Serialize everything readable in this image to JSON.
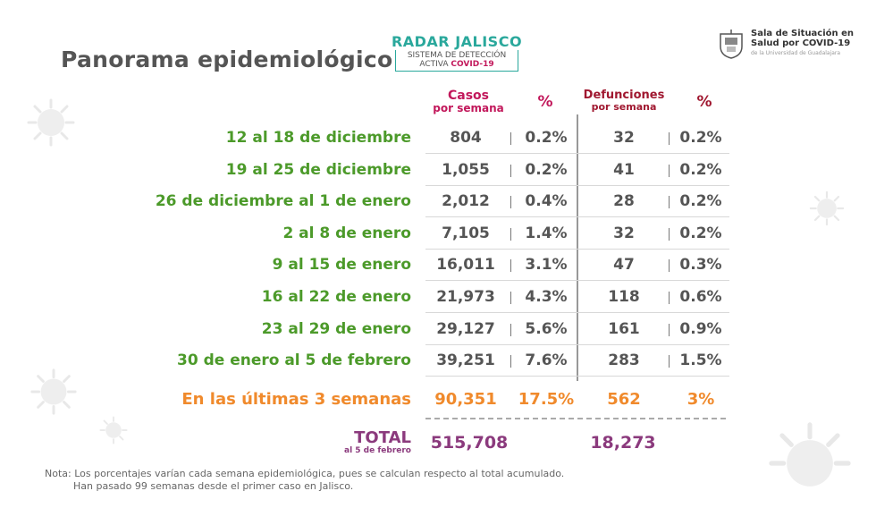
{
  "title": "Panorama epidemiológico",
  "radar": {
    "name": "RADAR JALISCO",
    "line1": "SISTEMA DE DETECCIÓN",
    "line2_prefix": "ACTIVA ",
    "line2_highlight": "COVID-19"
  },
  "brand": {
    "line1": "Sala de Situación en",
    "line2": "Salud por COVID-19",
    "line3": "de la Universidad de Guadalajara"
  },
  "headers": {
    "cases_top": "Casos",
    "cases_bottom": "por semana",
    "pct1": "%",
    "deaths_top": "Defunciones",
    "deaths_bottom": "por semana",
    "pct2": "%"
  },
  "rows": [
    {
      "label": "12 al 18 de diciembre",
      "cases": "804",
      "cases_pct": "0.2%",
      "deaths": "32",
      "deaths_pct": "0.2%"
    },
    {
      "label": "19 al 25 de diciembre",
      "cases": "1,055",
      "cases_pct": "0.2%",
      "deaths": "41",
      "deaths_pct": "0.2%"
    },
    {
      "label": "26 de diciembre al 1 de enero",
      "cases": "2,012",
      "cases_pct": "0.4%",
      "deaths": "28",
      "deaths_pct": "0.2%"
    },
    {
      "label": "2 al 8 de enero",
      "cases": "7,105",
      "cases_pct": "1.4%",
      "deaths": "32",
      "deaths_pct": "0.2%"
    },
    {
      "label": "9 al 15 de enero",
      "cases": "16,011",
      "cases_pct": "3.1%",
      "deaths": "47",
      "deaths_pct": "0.3%"
    },
    {
      "label": "16 al 22 de enero",
      "cases": "21,973",
      "cases_pct": "4.3%",
      "deaths": "118",
      "deaths_pct": "0.6%"
    },
    {
      "label": "23 al 29 de enero",
      "cases": "29,127",
      "cases_pct": "5.6%",
      "deaths": "161",
      "deaths_pct": "0.9%"
    },
    {
      "label": "30 de enero al 5 de febrero",
      "cases": "39,251",
      "cases_pct": "7.6%",
      "deaths": "283",
      "deaths_pct": "1.5%"
    }
  ],
  "last3": {
    "label": "En las últimas 3 semanas",
    "cases": "90,351",
    "cases_pct": "17.5%",
    "deaths": "562",
    "deaths_pct": "3%"
  },
  "total": {
    "label": "TOTAL",
    "date": "al 5 de febrero",
    "cases": "515,708",
    "deaths": "18,273"
  },
  "note": {
    "line1": "Nota: Los porcentajes varían cada semana epidemiológica, pues se calculan respecto al total acumulado.",
    "line2": "Han pasado 99 semanas desde el primer caso en Jalisco."
  },
  "colors": {
    "green": "#4c9a2a",
    "orange": "#f08a2c",
    "magenta": "#c2185b",
    "purple": "#8b3a7d",
    "teal": "#2aa89c"
  }
}
